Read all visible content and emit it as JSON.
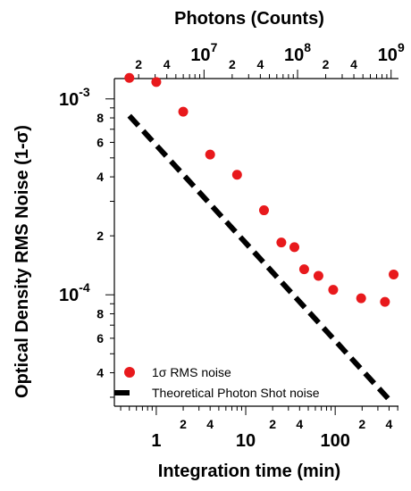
{
  "chart_data": {
    "type": "scatter",
    "xlabel": "Integration time (min)",
    "x2label": "Photons (Counts)",
    "ylabel": "Optical Density RMS Noise (1-σ)",
    "xscale": "log",
    "yscale": "log",
    "xlim": [
      0.34,
      510
    ],
    "x2lim": [
      1100000.0,
      1200000000.0
    ],
    "ylim": [
      2.7e-05,
      0.00127
    ],
    "x_major_ticks": [
      {
        "value": 1,
        "label": "1"
      },
      {
        "value": 10,
        "label": "10"
      },
      {
        "value": 100,
        "label": "100"
      }
    ],
    "x_minor_labeled": [
      {
        "value": 2,
        "label": "2"
      },
      {
        "value": 4,
        "label": "4"
      },
      {
        "value": 20,
        "label": "2"
      },
      {
        "value": 40,
        "label": "4"
      },
      {
        "value": 200,
        "label": "2"
      },
      {
        "value": 400,
        "label": "4"
      }
    ],
    "x_minor_ticks": [
      0.4,
      0.5,
      0.6,
      0.7,
      0.8,
      0.9,
      2,
      3,
      4,
      5,
      6,
      7,
      8,
      9,
      20,
      30,
      40,
      50,
      60,
      70,
      80,
      90,
      200,
      300,
      400,
      500
    ],
    "x2_major_ticks": [
      {
        "value": 10000000.0,
        "base": "10",
        "exp": "7"
      },
      {
        "value": 100000000.0,
        "base": "10",
        "exp": "8"
      },
      {
        "value": 1000000000.0,
        "base": "10",
        "exp": "9"
      }
    ],
    "x2_minor_labeled": [
      {
        "value": 2000000.0,
        "label": "2"
      },
      {
        "value": 4000000.0,
        "label": "4"
      },
      {
        "value": 20000000.0,
        "label": "2"
      },
      {
        "value": 40000000.0,
        "label": "4"
      },
      {
        "value": 200000000.0,
        "label": "2"
      },
      {
        "value": 400000000.0,
        "label": "4"
      }
    ],
    "x2_minor_ticks": [
      2000000.0,
      3000000.0,
      4000000.0,
      5000000.0,
      6000000.0,
      7000000.0,
      8000000.0,
      9000000.0,
      20000000.0,
      30000000.0,
      40000000.0,
      50000000.0,
      60000000.0,
      70000000.0,
      80000000.0,
      90000000.0,
      200000000.0,
      300000000.0,
      400000000.0,
      500000000.0,
      600000000.0,
      700000000.0,
      800000000.0,
      900000000.0
    ],
    "y_major_ticks": [
      {
        "value": 0.001,
        "base": "10",
        "exp": "-3"
      },
      {
        "value": 0.0001,
        "base": "10",
        "exp": "-4"
      }
    ],
    "y_minor_labeled": [
      {
        "value": 0.0008,
        "label": "8"
      },
      {
        "value": 0.0006,
        "label": "6"
      },
      {
        "value": 0.0004,
        "label": "4"
      },
      {
        "value": 0.0002,
        "label": "2"
      },
      {
        "value": 8e-05,
        "label": "8"
      },
      {
        "value": 6e-05,
        "label": "6"
      },
      {
        "value": 4e-05,
        "label": "4"
      }
    ],
    "y_minor_ticks": [
      0.0009,
      0.0008,
      0.0007,
      0.0006,
      0.0005,
      0.0004,
      0.0003,
      0.0002,
      9e-05,
      8e-05,
      7e-05,
      6e-05,
      5e-05,
      4e-05,
      3e-05
    ],
    "series": [
      {
        "name": "1σ RMS noise",
        "kind": "scatter",
        "color": "#e8191c",
        "points": [
          {
            "x": 0.5,
            "y": 0.00128
          },
          {
            "x": 1.0,
            "y": 0.00122
          },
          {
            "x": 2.0,
            "y": 0.00086
          },
          {
            "x": 4.0,
            "y": 0.00052
          },
          {
            "x": 8.0,
            "y": 0.00041
          },
          {
            "x": 16,
            "y": 0.00027
          },
          {
            "x": 25,
            "y": 0.000185
          },
          {
            "x": 35,
            "y": 0.000175
          },
          {
            "x": 45,
            "y": 0.000135
          },
          {
            "x": 65,
            "y": 0.000125
          },
          {
            "x": 95,
            "y": 0.000106
          },
          {
            "x": 195,
            "y": 9.6e-05
          },
          {
            "x": 360,
            "y": 9.2e-05
          },
          {
            "x": 450,
            "y": 0.000127
          }
        ]
      },
      {
        "name": "Theoretical Photon Shot noise",
        "kind": "line",
        "style": "dashed",
        "color": "#000000",
        "points": [
          {
            "x": 0.5,
            "y": 0.00082
          },
          {
            "x": 420,
            "y": 2.85e-05
          }
        ]
      }
    ],
    "legend_placement": "bottom-left",
    "grid": false
  }
}
